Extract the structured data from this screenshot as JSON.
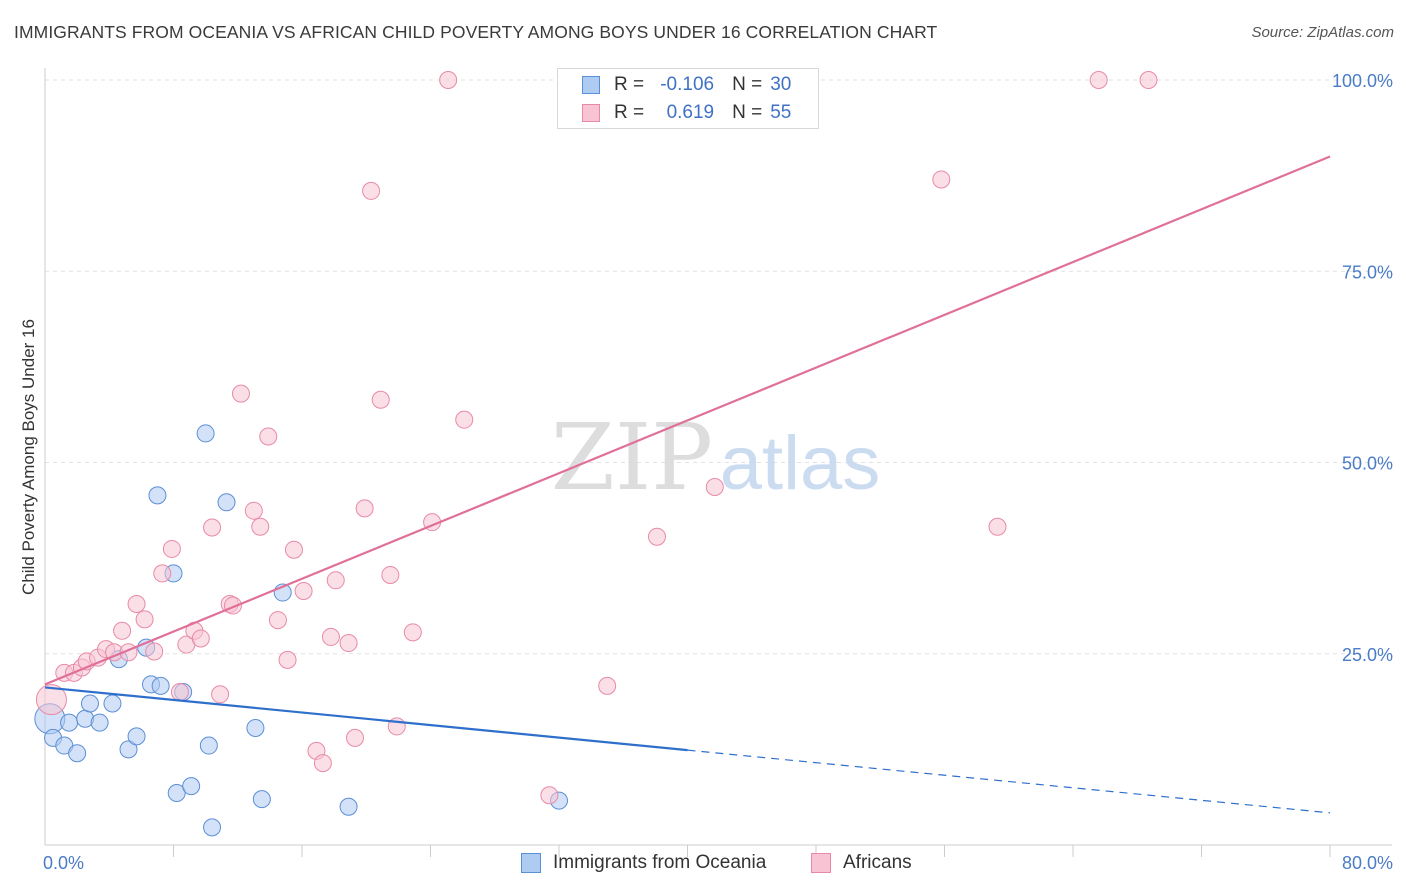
{
  "title": "IMMIGRANTS FROM OCEANIA VS AFRICAN CHILD POVERTY AMONG BOYS UNDER 16 CORRELATION CHART",
  "source": "Source: ZipAtlas.com",
  "watermark": {
    "zip": "ZIP",
    "atlas": "atlas"
  },
  "legend": {
    "rows": [
      {
        "r_label": "R =",
        "r_value": "-0.106",
        "n_label": "N =",
        "n_value": "30"
      },
      {
        "r_label": "R =",
        "r_value": "0.619",
        "n_label": "N =",
        "n_value": "55"
      }
    ]
  },
  "chart_data": {
    "type": "scatter",
    "title": "IMMIGRANTS FROM OCEANIA VS AFRICAN CHILD POVERTY AMONG BOYS UNDER 16 CORRELATION CHART",
    "xlabel": "",
    "ylabel": "Child Poverty Among Boys Under 16",
    "xlim": [
      0,
      80
    ],
    "ylim": [
      0,
      100
    ],
    "x_tick_labels": [
      "0.0%",
      "80.0%"
    ],
    "y_tick_labels": [
      "25.0%",
      "50.0%",
      "75.0%",
      "100.0%"
    ],
    "y_tick_values": [
      25,
      50,
      75,
      100
    ],
    "grid": true,
    "legend_position": "bottom",
    "series": [
      {
        "name": "Immigrants from Oceania",
        "color": "#aecbf2",
        "edge": "#5b8fd6",
        "line_color": "#2f6fcc",
        "trend": {
          "x": [
            0,
            40
          ],
          "y": [
            20.6,
            12.4
          ]
        },
        "trend_dashed": {
          "x": [
            40,
            80
          ],
          "y": [
            12.4,
            4.2
          ]
        },
        "points": [
          [
            0.3,
            16.5,
            2
          ],
          [
            0.5,
            14.0,
            1
          ],
          [
            1.2,
            13.0,
            1
          ],
          [
            1.5,
            16.0,
            1
          ],
          [
            2.0,
            12.0,
            1
          ],
          [
            2.5,
            16.5,
            1
          ],
          [
            2.8,
            18.5,
            1
          ],
          [
            3.4,
            16.0,
            1
          ],
          [
            4.2,
            18.5,
            1
          ],
          [
            4.6,
            24.3,
            1
          ],
          [
            5.2,
            12.5,
            1
          ],
          [
            5.7,
            14.2,
            1
          ],
          [
            6.3,
            25.8,
            1
          ],
          [
            6.6,
            21.0,
            1
          ],
          [
            7.0,
            45.7,
            1
          ],
          [
            7.2,
            20.8,
            1
          ],
          [
            8.0,
            35.5,
            1
          ],
          [
            8.2,
            6.8,
            1
          ],
          [
            8.6,
            20.0,
            1
          ],
          [
            9.1,
            7.7,
            1
          ],
          [
            10.0,
            53.8,
            1
          ],
          [
            10.2,
            13.0,
            1
          ],
          [
            10.4,
            2.3,
            1
          ],
          [
            11.3,
            44.8,
            1
          ],
          [
            13.1,
            15.3,
            1
          ],
          [
            13.5,
            6.0,
            1
          ],
          [
            14.8,
            33.0,
            1
          ],
          [
            18.9,
            5.0,
            1
          ],
          [
            32.0,
            5.8,
            1
          ]
        ]
      },
      {
        "name": "Africans",
        "color": "#f8c4d4",
        "edge": "#e88aa7",
        "line_color": "#e0709a",
        "trend": {
          "x": [
            0,
            80
          ],
          "y": [
            21.0,
            90.0
          ]
        },
        "points": [
          [
            0.4,
            19.0,
            2
          ],
          [
            1.2,
            22.5,
            1
          ],
          [
            1.8,
            22.5,
            1
          ],
          [
            2.3,
            23.2,
            1
          ],
          [
            2.6,
            24.0,
            1
          ],
          [
            3.3,
            24.5,
            1
          ],
          [
            3.8,
            25.6,
            1
          ],
          [
            4.3,
            25.2,
            1
          ],
          [
            4.8,
            28.0,
            1
          ],
          [
            5.2,
            25.2,
            1
          ],
          [
            5.7,
            31.5,
            1
          ],
          [
            6.2,
            29.5,
            1
          ],
          [
            6.8,
            25.3,
            1
          ],
          [
            7.3,
            35.5,
            1
          ],
          [
            7.9,
            38.7,
            1
          ],
          [
            8.4,
            20.0,
            1
          ],
          [
            8.8,
            26.2,
            1
          ],
          [
            9.3,
            28.0,
            1
          ],
          [
            9.7,
            27.0,
            1
          ],
          [
            10.4,
            41.5,
            1
          ],
          [
            10.9,
            19.7,
            1
          ],
          [
            11.5,
            31.5,
            1
          ],
          [
            11.7,
            31.3,
            1
          ],
          [
            12.2,
            59.0,
            1
          ],
          [
            13.0,
            43.7,
            1
          ],
          [
            13.4,
            41.6,
            1
          ],
          [
            13.9,
            53.4,
            1
          ],
          [
            14.5,
            29.4,
            1
          ],
          [
            15.1,
            24.2,
            1
          ],
          [
            15.5,
            38.6,
            1
          ],
          [
            16.1,
            33.2,
            1
          ],
          [
            16.9,
            12.3,
            1
          ],
          [
            17.3,
            10.7,
            1
          ],
          [
            17.8,
            27.2,
            1
          ],
          [
            18.1,
            34.6,
            1
          ],
          [
            18.9,
            26.4,
            1
          ],
          [
            19.3,
            14.0,
            1
          ],
          [
            19.9,
            44.0,
            1
          ],
          [
            20.3,
            85.5,
            1
          ],
          [
            20.9,
            58.2,
            1
          ],
          [
            21.5,
            35.3,
            1
          ],
          [
            21.9,
            15.5,
            1
          ],
          [
            22.9,
            27.8,
            1
          ],
          [
            24.1,
            42.2,
            1
          ],
          [
            25.1,
            100.0,
            1
          ],
          [
            26.1,
            55.6,
            1
          ],
          [
            35.0,
            20.8,
            1
          ],
          [
            38.1,
            40.3,
            1
          ],
          [
            41.7,
            46.8,
            1
          ],
          [
            31.4,
            6.5,
            1
          ],
          [
            55.8,
            87.0,
            1
          ],
          [
            59.3,
            41.6,
            1
          ],
          [
            65.6,
            100.0,
            1
          ],
          [
            68.7,
            100.0,
            1
          ]
        ]
      }
    ]
  }
}
